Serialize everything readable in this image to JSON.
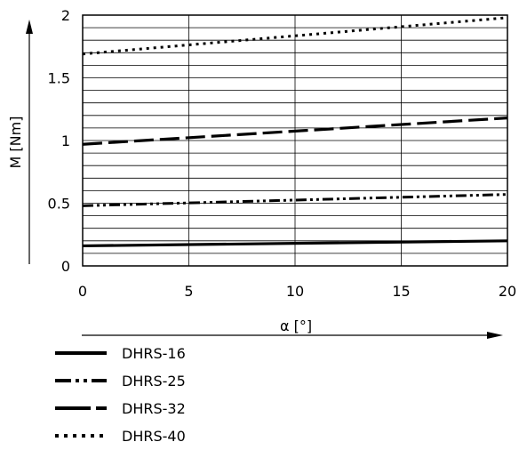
{
  "chart_data": {
    "type": "line",
    "xlabel": "α [°]",
    "ylabel": "M [Nm]",
    "xlim": [
      0,
      20
    ],
    "ylim": [
      0,
      2
    ],
    "x_ticks": [
      0,
      5,
      10,
      15,
      20
    ],
    "y_ticks": [
      0,
      0.5,
      1,
      1.5,
      2
    ],
    "y_tick_labels": [
      "0",
      "0.5",
      "1",
      "1.5",
      "2"
    ],
    "x_tick_labels": [
      "0",
      "5",
      "10",
      "15",
      "20"
    ],
    "grid": true,
    "legend_position": "bottom-left",
    "series": [
      {
        "name": "DHRS-16",
        "style": "solid",
        "x": [
          0,
          20
        ],
        "y": [
          0.16,
          0.2
        ]
      },
      {
        "name": "DHRS-25",
        "style": "dash-dot-dot",
        "x": [
          0,
          20
        ],
        "y": [
          0.48,
          0.57
        ]
      },
      {
        "name": "DHRS-32",
        "style": "long-dash",
        "x": [
          0,
          20
        ],
        "y": [
          0.97,
          1.18
        ]
      },
      {
        "name": "DHRS-40",
        "style": "dotted",
        "x": [
          0,
          20
        ],
        "y": [
          1.69,
          1.98
        ]
      }
    ]
  }
}
